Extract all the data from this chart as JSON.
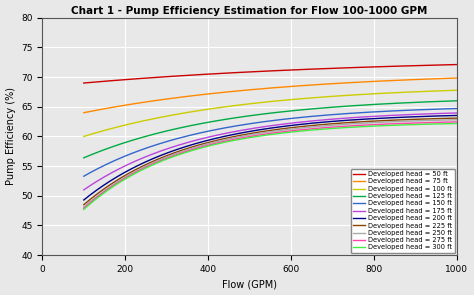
{
  "title": "Chart 1 - Pump Efficiency Estimation for Flow 100-1000 GPM",
  "xlabel": "Flow (GPM)",
  "ylabel": "Pump Efficiency (%)",
  "xlim": [
    0,
    1000
  ],
  "ylim": [
    40,
    80
  ],
  "yticks": [
    40,
    45,
    50,
    55,
    60,
    65,
    70,
    75,
    80
  ],
  "xticks": [
    0,
    200,
    400,
    600,
    800,
    1000
  ],
  "heads": [
    50,
    75,
    100,
    125,
    150,
    175,
    200,
    225,
    250,
    275,
    300
  ],
  "colors": [
    "#cc0000",
    "#ff8800",
    "#cccc00",
    "#00aa44",
    "#3366cc",
    "#bb44dd",
    "#000088",
    "#884400",
    "#aaaaaa",
    "#ff44aa",
    "#44ee44"
  ],
  "legend_labels": [
    "Developed head = 50 ft",
    "Developed head = 75 ft",
    "Developed head = 100 ft",
    "Developed head = 125 ft",
    "Developed head = 150 ft",
    "Developed head = 175 ft",
    "Developed head = 200 ft",
    "Developed head = 225 ft",
    "Developed head = 250 ft",
    "Developed head = 275 ft",
    "Developed head = 300 ft"
  ],
  "background_color": "#e8e8e8",
  "grid_color": "#ffffff",
  "eta_start": [
    69.0,
    64.0,
    60.0,
    56.4,
    53.3,
    51.0,
    49.3,
    48.5,
    48.1,
    47.9,
    47.7
  ],
  "eta_end": [
    73.3,
    71.0,
    68.7,
    66.8,
    65.3,
    64.5,
    64.0,
    63.5,
    63.2,
    62.8,
    62.5
  ],
  "tau": [
    700,
    500,
    400,
    350,
    300,
    280,
    260,
    250,
    245,
    240,
    235
  ]
}
